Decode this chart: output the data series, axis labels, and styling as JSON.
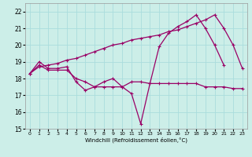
{
  "xlabel": "Windchill (Refroidissement éolien,°C)",
  "background_color": "#cceee8",
  "grid_color": "#aadddd",
  "line_color": "#990066",
  "x": [
    0,
    1,
    2,
    3,
    4,
    5,
    6,
    7,
    8,
    9,
    10,
    11,
    12,
    13,
    14,
    15,
    16,
    17,
    18,
    19,
    20,
    21,
    22,
    23
  ],
  "line1_y": [
    18.3,
    18.8,
    18.5,
    18.5,
    18.5,
    18.0,
    17.8,
    17.5,
    17.5,
    17.5,
    17.5,
    17.8,
    17.8,
    17.7,
    17.7,
    17.7,
    17.7,
    17.7,
    17.7,
    17.5,
    17.5,
    17.5,
    17.4,
    17.4
  ],
  "line2_x": [
    0,
    1,
    2,
    3,
    4,
    5,
    6,
    7,
    8,
    9,
    10,
    11,
    12,
    13,
    14,
    15,
    16,
    17,
    18,
    19,
    20,
    21
  ],
  "line2_y": [
    18.3,
    19.0,
    18.6,
    18.6,
    18.7,
    17.8,
    17.3,
    17.5,
    17.8,
    18.0,
    17.5,
    17.1,
    15.3,
    17.7,
    19.9,
    20.7,
    21.1,
    21.4,
    21.8,
    21.0,
    20.0,
    18.8
  ],
  "line3_x": [
    0,
    1,
    2,
    3,
    4,
    5,
    6,
    7,
    8,
    9,
    10,
    11,
    12,
    13,
    14,
    15,
    16,
    17,
    18,
    19,
    20,
    21,
    22,
    23
  ],
  "line3_y": [
    18.3,
    18.7,
    18.8,
    18.9,
    19.1,
    19.2,
    19.4,
    19.6,
    19.8,
    20.0,
    20.1,
    20.3,
    20.4,
    20.5,
    20.6,
    20.8,
    20.9,
    21.1,
    21.3,
    21.5,
    21.8,
    21.0,
    20.0,
    18.6
  ],
  "ylim": [
    15,
    22.5
  ],
  "xlim": [
    -0.5,
    23.5
  ],
  "yticks": [
    15,
    16,
    17,
    18,
    19,
    20,
    21,
    22
  ],
  "xticks": [
    0,
    1,
    2,
    3,
    4,
    5,
    6,
    7,
    8,
    9,
    10,
    11,
    12,
    13,
    14,
    15,
    16,
    17,
    18,
    19,
    20,
    21,
    22,
    23
  ],
  "marker_size": 3,
  "line_width": 0.9
}
